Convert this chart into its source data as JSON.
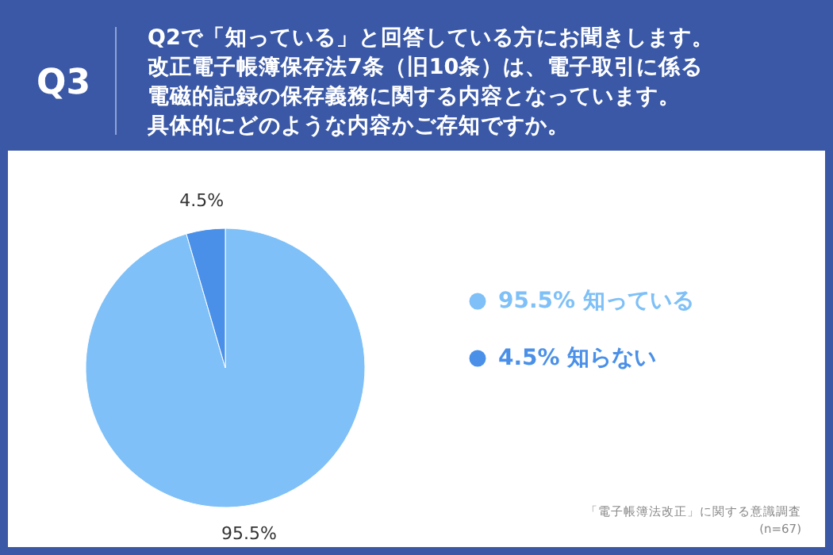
{
  "chart_data": {
    "type": "pie",
    "title": "Q3",
    "subtitle": [
      "Q2で「知っている」と回答している方にお聞きします。",
      "改正電子帳簿保存法7条（旧10条）は、電子取引に係る",
      "電磁的記録の保存義務に関する内容となっています。",
      "具体的にどのような内容かご存知ですか。"
    ],
    "categories": [
      "知っている",
      "知らない"
    ],
    "values": [
      95.5,
      4.5
    ],
    "colors": [
      "#7ec0f7",
      "#4a90e8"
    ],
    "value_labels": [
      "95.5%",
      "4.5%"
    ],
    "data_labels": true,
    "legend": "right",
    "annotations": [
      "「電子帳簿法改正」に関する意識調査",
      "(n=67)"
    ]
  }
}
